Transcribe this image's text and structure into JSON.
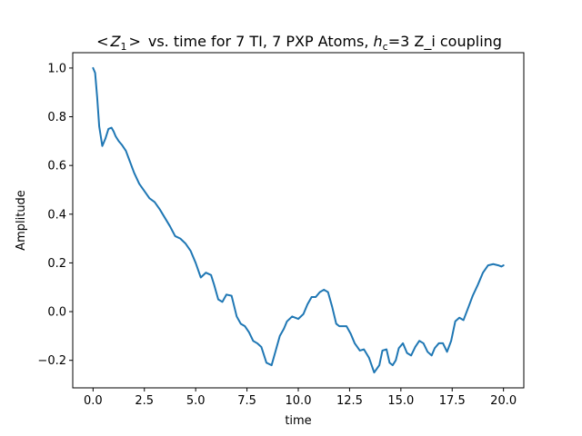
{
  "chart_data": {
    "type": "line",
    "title_parts": {
      "bra": "<",
      "z_sym": "Z",
      "z_sub": "1",
      "ket": ">",
      "mid": "vs. time for 7 TI, 7 PXP Atoms, ",
      "h_sym": "h",
      "h_sub": "c",
      "tail": "=3 Z_i coupling"
    },
    "xlabel": "time",
    "ylabel": "Amplitude",
    "xlim": [
      -0.99,
      20.99
    ],
    "ylim": [
      -0.313,
      1.063
    ],
    "xticks": [
      0.0,
      2.5,
      5.0,
      7.5,
      10.0,
      12.5,
      15.0,
      17.5,
      20.0
    ],
    "xtick_labels": [
      "0.0",
      "2.5",
      "5.0",
      "7.5",
      "10.0",
      "12.5",
      "15.0",
      "17.5",
      "20.0"
    ],
    "yticks": [
      -0.2,
      0.0,
      0.2,
      0.4,
      0.6,
      0.8,
      1.0
    ],
    "ytick_labels": [
      "−0.2",
      "0.0",
      "0.2",
      "0.4",
      "0.6",
      "0.8",
      "1.0"
    ],
    "grid": false,
    "colors": {
      "line": "#1f77b4"
    },
    "series": [
      {
        "x": [
          0.0,
          0.1,
          0.2,
          0.3,
          0.45,
          0.6,
          0.75,
          0.9,
          1.0,
          1.1,
          1.25,
          1.4,
          1.6,
          1.8,
          2.0,
          2.25,
          2.5,
          2.75,
          3.0,
          3.25,
          3.5,
          3.75,
          4.0,
          4.25,
          4.5,
          4.75,
          5.0,
          5.25,
          5.5,
          5.75,
          5.9,
          6.1,
          6.3,
          6.5,
          6.75,
          7.0,
          7.2,
          7.4,
          7.6,
          7.8,
          8.0,
          8.2,
          8.45,
          8.7,
          8.9,
          9.1,
          9.3,
          9.45,
          9.7,
          10.0,
          10.25,
          10.45,
          10.65,
          10.85,
          11.05,
          11.25,
          11.45,
          11.65,
          11.85,
          12.0,
          12.15,
          12.35,
          12.55,
          12.75,
          13.0,
          13.2,
          13.45,
          13.7,
          13.95,
          14.1,
          14.3,
          14.45,
          14.6,
          14.75,
          14.9,
          15.1,
          15.3,
          15.5,
          15.7,
          15.9,
          16.1,
          16.3,
          16.5,
          16.65,
          16.85,
          17.05,
          17.25,
          17.45,
          17.65,
          17.85,
          18.05,
          18.3,
          18.5,
          18.75,
          19.0,
          19.25,
          19.5,
          19.75,
          19.9,
          20.0
        ],
        "y": [
          1.0,
          0.98,
          0.88,
          0.76,
          0.68,
          0.71,
          0.75,
          0.755,
          0.74,
          0.72,
          0.7,
          0.685,
          0.66,
          0.615,
          0.57,
          0.525,
          0.495,
          0.465,
          0.45,
          0.42,
          0.385,
          0.35,
          0.31,
          0.3,
          0.28,
          0.25,
          0.2,
          0.14,
          0.16,
          0.15,
          0.11,
          0.05,
          0.04,
          0.07,
          0.065,
          -0.02,
          -0.05,
          -0.06,
          -0.085,
          -0.12,
          -0.13,
          -0.145,
          -0.21,
          -0.22,
          -0.16,
          -0.1,
          -0.07,
          -0.04,
          -0.02,
          -0.03,
          -0.01,
          0.03,
          0.06,
          0.06,
          0.08,
          0.09,
          0.08,
          0.02,
          -0.05,
          -0.06,
          -0.06,
          -0.06,
          -0.09,
          -0.13,
          -0.16,
          -0.155,
          -0.19,
          -0.25,
          -0.22,
          -0.16,
          -0.155,
          -0.21,
          -0.22,
          -0.2,
          -0.15,
          -0.13,
          -0.17,
          -0.18,
          -0.145,
          -0.12,
          -0.13,
          -0.165,
          -0.18,
          -0.15,
          -0.13,
          -0.13,
          -0.165,
          -0.12,
          -0.04,
          -0.025,
          -0.035,
          0.02,
          0.065,
          0.11,
          0.16,
          0.19,
          0.195,
          0.19,
          0.185,
          0.19
        ]
      }
    ]
  }
}
